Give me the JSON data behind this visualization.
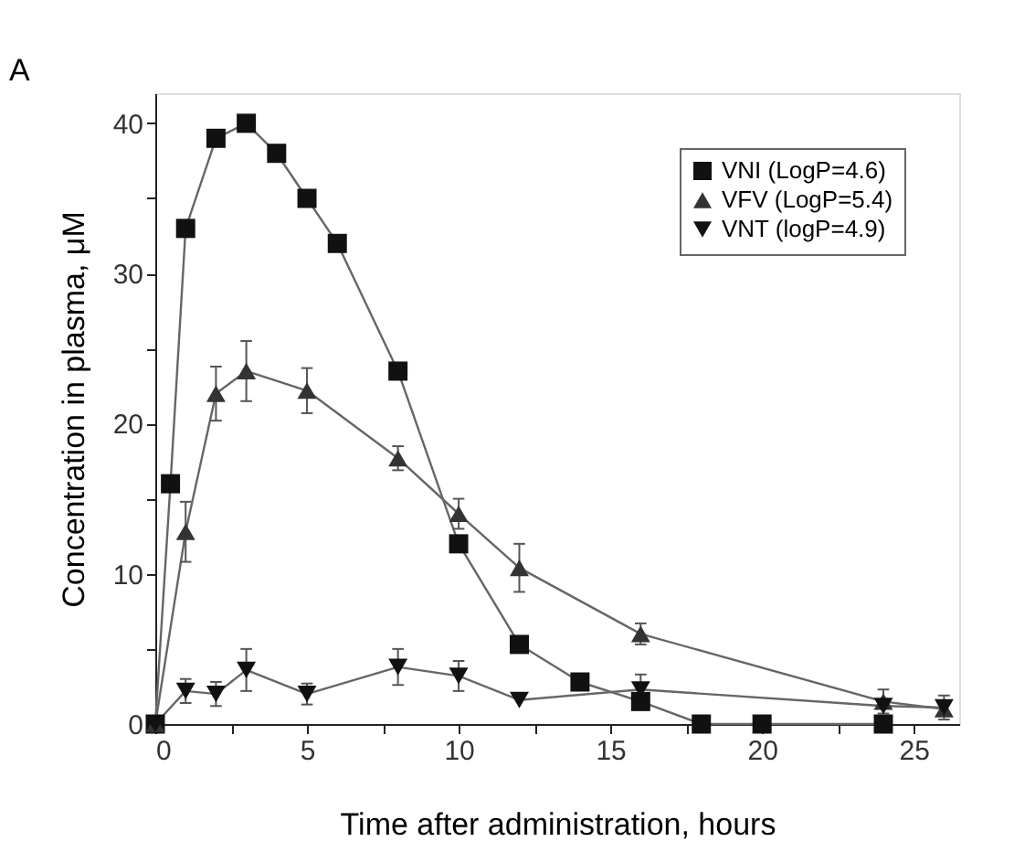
{
  "chart_data": {
    "type": "line",
    "xlabel": "Time after administration, hours",
    "ylabel": "Concentration in plasma, μM",
    "annotations": [
      "A"
    ],
    "xlim": [
      0,
      26.5
    ],
    "ylim": [
      0,
      42
    ],
    "xticks": [
      0,
      {
        "value": 2.5,
        "label": null
      },
      5,
      {
        "value": 7.5,
        "label": null
      },
      10,
      {
        "value": 12.5,
        "label": null
      },
      15,
      {
        "value": 17.5,
        "label": null
      },
      20,
      {
        "value": 22.5,
        "label": null
      },
      25
    ],
    "yticks": [
      0,
      {
        "value": 5,
        "label": null
      },
      10,
      {
        "value": 15,
        "label": null
      },
      20,
      {
        "value": 25,
        "label": null
      },
      30,
      {
        "value": 35,
        "label": null
      },
      40
    ],
    "grid": false,
    "legend": "top right",
    "line_style": "solid",
    "series": [
      {
        "name": "VNI (LogP=4.6)",
        "color": "#111111",
        "marker": "square",
        "x": [
          0,
          0.5,
          1,
          2,
          3,
          4,
          5,
          6,
          8,
          10,
          12,
          14,
          16,
          18,
          20,
          24
        ],
        "values": [
          0,
          16,
          33,
          39,
          40,
          38,
          35,
          32,
          23.5,
          12,
          5.3,
          2.8,
          1.5,
          0,
          0,
          0
        ]
      },
      {
        "name": "VFV (LogP=5.4)",
        "color": "#333333",
        "marker": "triangle",
        "x": [
          0,
          1,
          2,
          3,
          5,
          8,
          10,
          12,
          16,
          24,
          26
        ],
        "values": [
          0,
          12.8,
          22,
          23.5,
          22.2,
          17.7,
          14,
          10.4,
          6,
          1.5,
          1
        ],
        "errors": [
          null,
          2,
          1.8,
          2,
          1.5,
          0.8,
          1,
          1.6,
          0.7,
          0.8,
          null
        ]
      },
      {
        "name": "VNT (logP=4.9)",
        "color": "#111111",
        "marker": "triangle-down",
        "x": [
          0,
          1,
          2,
          3,
          5,
          8,
          10,
          12,
          16,
          24,
          26
        ],
        "values": [
          0,
          2.2,
          2,
          3.6,
          2,
          3.8,
          3.2,
          1.6,
          2.3,
          1.2,
          1.1
        ],
        "errors": [
          null,
          0.8,
          0.8,
          1.4,
          0.7,
          1.2,
          1,
          null,
          1,
          null,
          0.8
        ]
      }
    ]
  }
}
